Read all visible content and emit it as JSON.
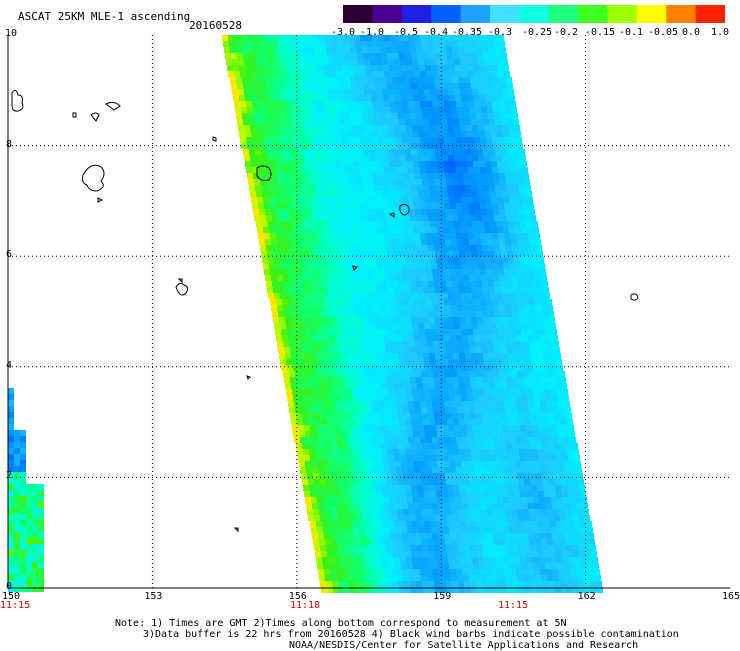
{
  "header": {
    "title": "ASCAT 25KM MLE-1 ascending",
    "date": "20160528"
  },
  "colorbar": {
    "labels": [
      "-3.0",
      "-1.0",
      "-0.5",
      "-0.4",
      "-0.35",
      "-0.3",
      "-0.25",
      "-0.2",
      "-0.15",
      "-0.1",
      "-0.05",
      "0.0",
      "1.0"
    ],
    "colors": [
      "#2a0030",
      "#4b0090",
      "#2020e0",
      "#0060ff",
      "#20a0ff",
      "#40e0ff",
      "#10ffe0",
      "#20ff80",
      "#40ff20",
      "#a0ff00",
      "#ffff00",
      "#ff8000",
      "#ff2000"
    ]
  },
  "axes": {
    "x_ticks": [
      "150",
      "153",
      "156",
      "159",
      "162",
      "165"
    ],
    "y_ticks": [
      "0",
      "2",
      "4",
      "6",
      "8",
      "10"
    ],
    "time_labels": [
      "11:15",
      "11:18",
      "11:15"
    ]
  },
  "chart_data": {
    "type": "heatmap",
    "title": "ASCAT 25KM MLE-1 ascending",
    "xlim": [
      150,
      165
    ],
    "ylim": [
      0,
      10
    ],
    "x_ticks": [
      150,
      153,
      156,
      159,
      162,
      165
    ],
    "y_ticks": [
      0,
      2,
      4,
      6,
      8,
      10
    ],
    "grid": true,
    "value_range": [
      -3.0,
      1.0
    ]
  },
  "footer": {
    "line1": "Note: 1) Times are GMT 2)Times along bottom correspond to measurement at 5N",
    "line2": "3)Data buffer is 22 hrs from 20160528 4) Black wind barbs indicate possible contamination",
    "line3": "NOAA/NESDIS/Center for Satellite Applications and Research"
  }
}
